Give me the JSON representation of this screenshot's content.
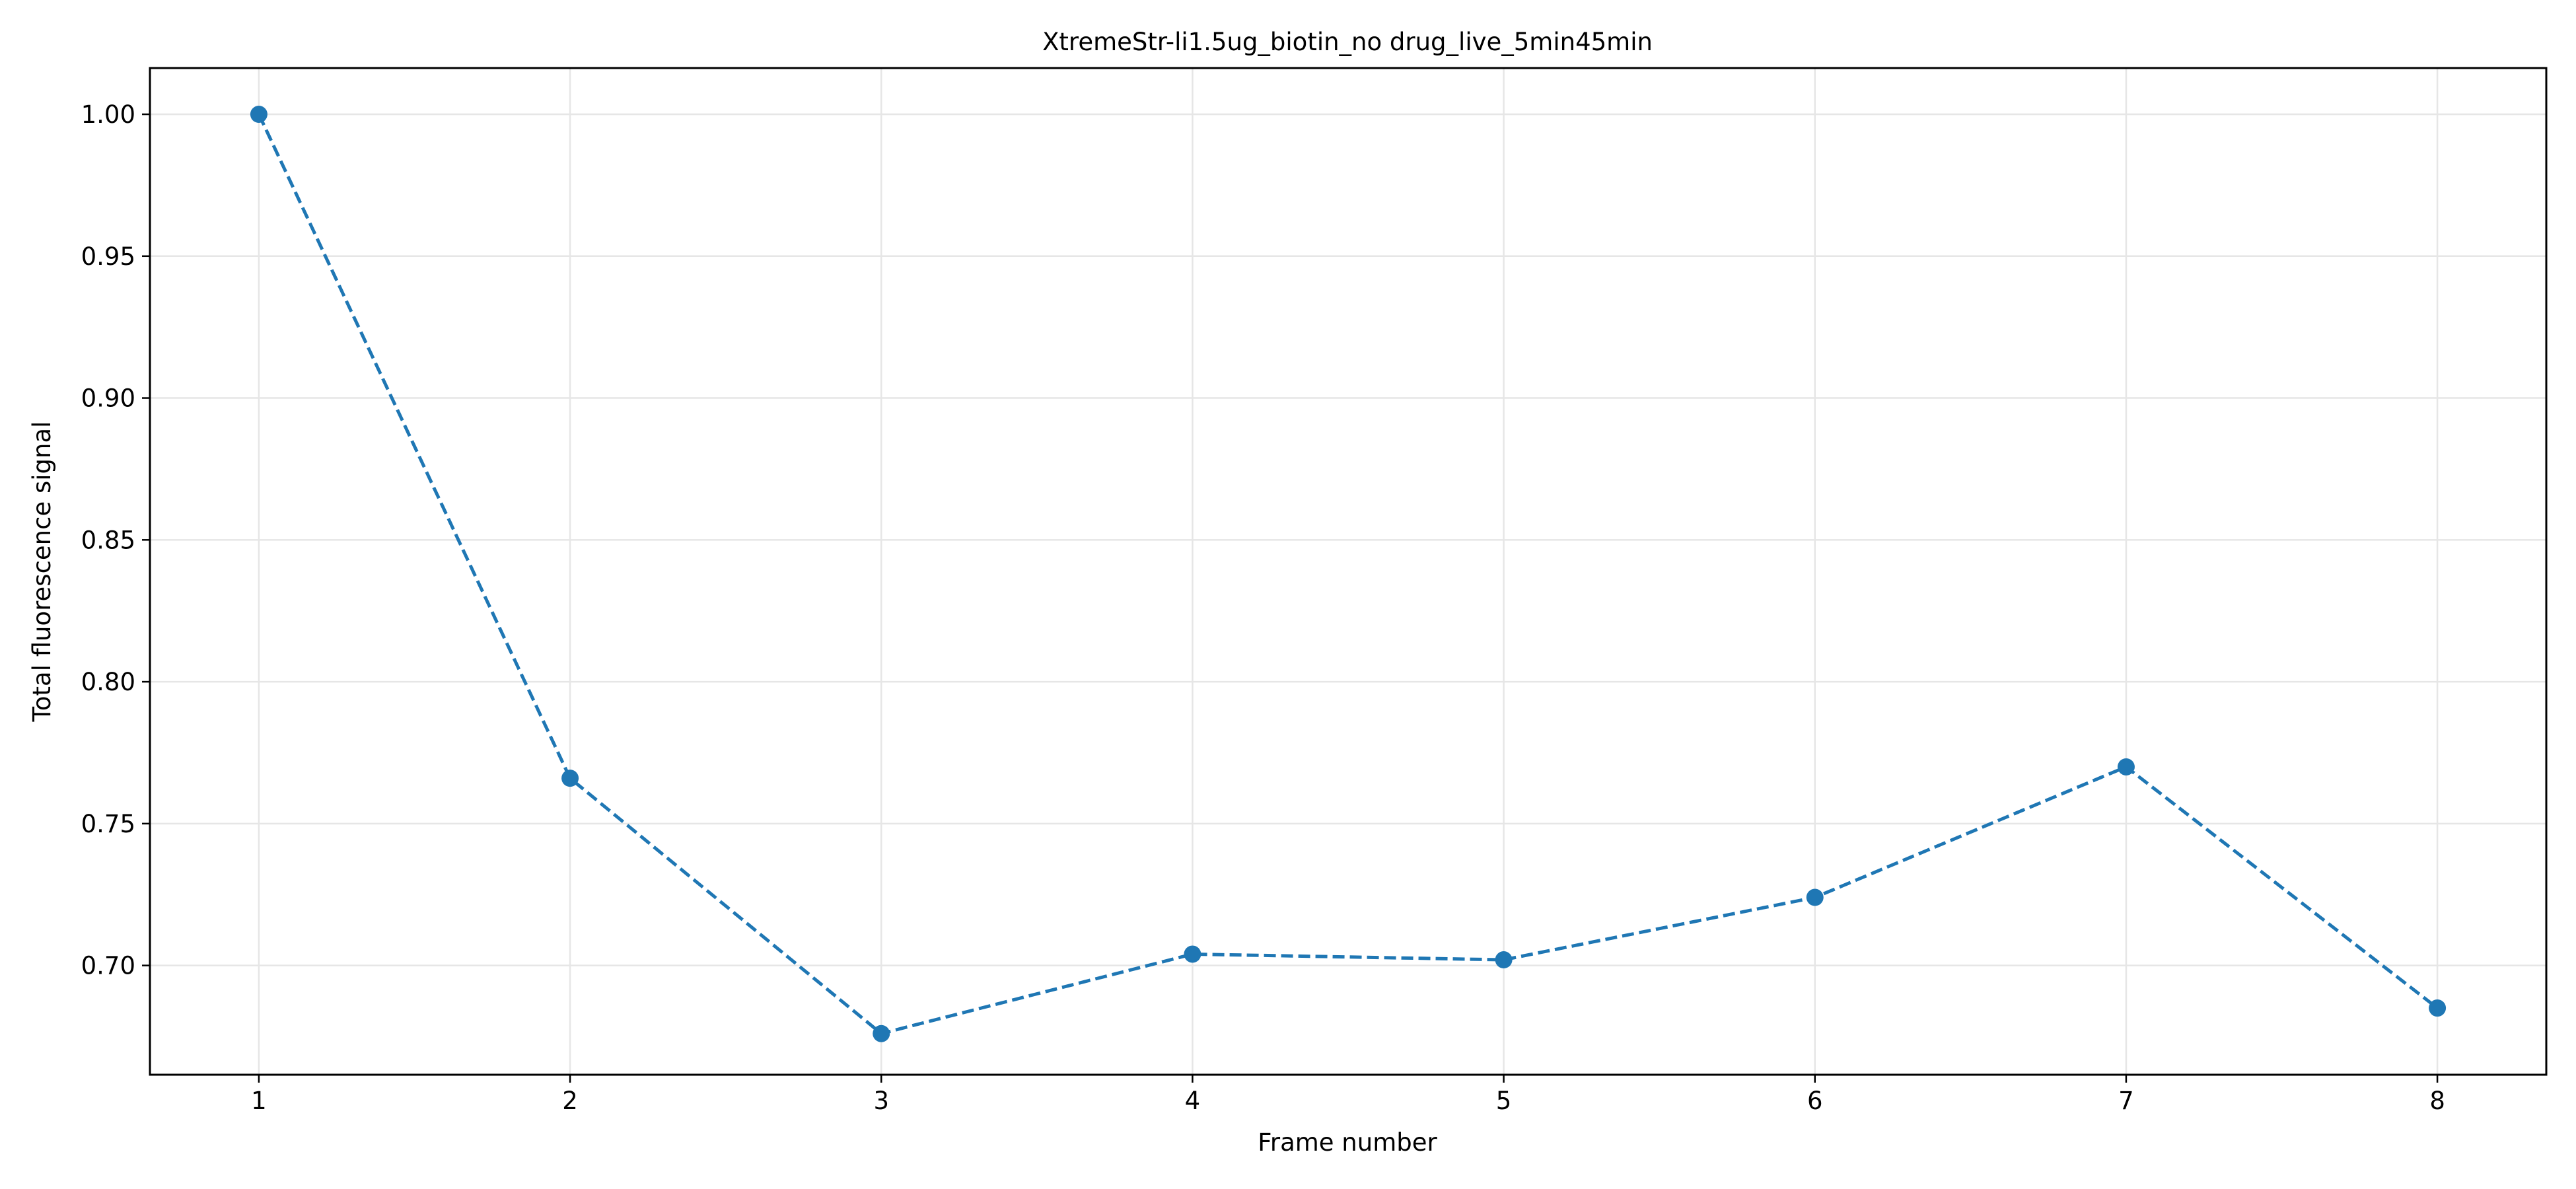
{
  "chart_data": {
    "type": "line",
    "title": "XtremeStr-li1.5ug_biotin_no drug_live_5min45min",
    "xlabel": "Frame number",
    "ylabel": "Total fluorescence signal",
    "x": [
      1,
      2,
      3,
      4,
      5,
      6,
      7,
      8
    ],
    "series": [
      {
        "values": [
          1.0,
          0.766,
          0.676,
          0.704,
          0.702,
          0.724,
          0.77,
          0.685
        ],
        "color": "#1f77b4",
        "line_style": "dashed",
        "marker": "circle"
      }
    ],
    "xlim": [
      0.65,
      8.35
    ],
    "ylim": [
      0.6615,
      1.0163
    ],
    "xticks": [
      "1",
      "2",
      "3",
      "4",
      "5",
      "6",
      "7",
      "8"
    ],
    "yticks": [
      "0.70",
      "0.75",
      "0.80",
      "0.85",
      "0.90",
      "0.95",
      "1.00"
    ],
    "ytick_values": [
      0.7,
      0.75,
      0.8,
      0.85,
      0.9,
      0.95,
      1.0
    ],
    "grid": true,
    "legend": "none"
  }
}
